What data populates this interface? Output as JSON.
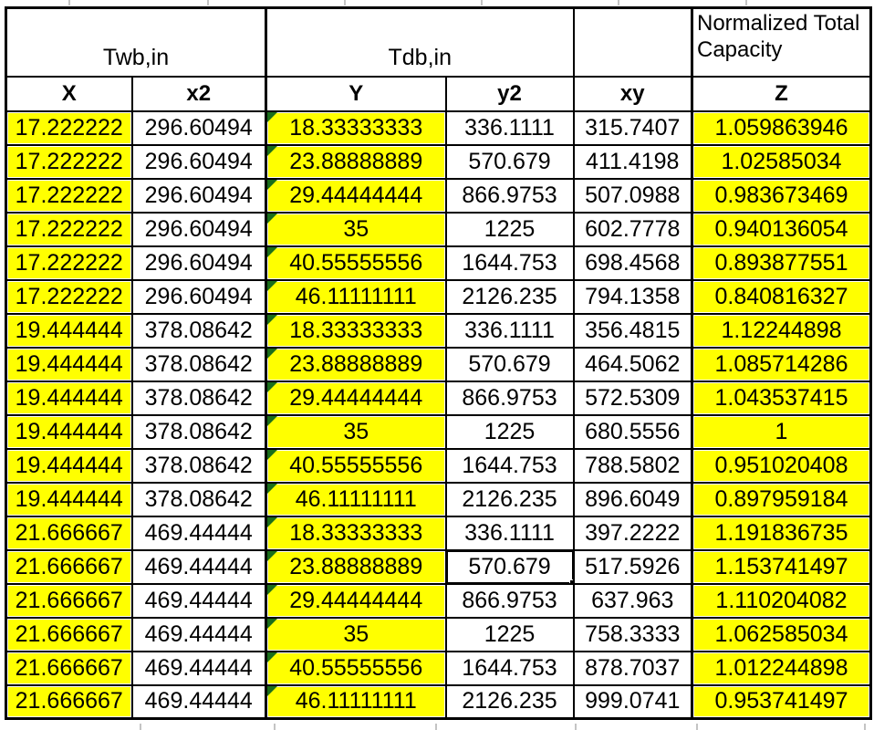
{
  "table": {
    "group_headers": [
      {
        "label": "Twb,in",
        "span": 2
      },
      {
        "label": "Tdb,in",
        "span": 2
      },
      {
        "label": "",
        "span": 1
      },
      {
        "label": "Normalized Total Capacity",
        "span": 1
      }
    ],
    "column_headers": [
      "X",
      "x2",
      "Y",
      "y2",
      "xy",
      "Z"
    ],
    "rows": [
      [
        "17.222222",
        "296.60494",
        "18.33333333",
        "336.1111",
        "315.7407",
        "1.059863946"
      ],
      [
        "17.222222",
        "296.60494",
        "23.88888889",
        "570.679",
        "411.4198",
        "1.02585034"
      ],
      [
        "17.222222",
        "296.60494",
        "29.44444444",
        "866.9753",
        "507.0988",
        "0.983673469"
      ],
      [
        "17.222222",
        "296.60494",
        "35",
        "1225",
        "602.7778",
        "0.940136054"
      ],
      [
        "17.222222",
        "296.60494",
        "40.55555556",
        "1644.753",
        "698.4568",
        "0.893877551"
      ],
      [
        "17.222222",
        "296.60494",
        "46.11111111",
        "2126.235",
        "794.1358",
        "0.840816327"
      ],
      [
        "19.444444",
        "378.08642",
        "18.33333333",
        "336.1111",
        "356.4815",
        "1.12244898"
      ],
      [
        "19.444444",
        "378.08642",
        "23.88888889",
        "570.679",
        "464.5062",
        "1.085714286"
      ],
      [
        "19.444444",
        "378.08642",
        "29.44444444",
        "866.9753",
        "572.5309",
        "1.043537415"
      ],
      [
        "19.444444",
        "378.08642",
        "35",
        "1225",
        "680.5556",
        "1"
      ],
      [
        "19.444444",
        "378.08642",
        "40.55555556",
        "1644.753",
        "788.5802",
        "0.951020408"
      ],
      [
        "19.444444",
        "378.08642",
        "46.11111111",
        "2126.235",
        "896.6049",
        "0.897959184"
      ],
      [
        "21.666667",
        "469.44444",
        "18.33333333",
        "336.1111",
        "397.2222",
        "1.191836735"
      ],
      [
        "21.666667",
        "469.44444",
        "23.88888889",
        "570.679",
        "517.5926",
        "1.153741497"
      ],
      [
        "21.666667",
        "469.44444",
        "29.44444444",
        "866.9753",
        "637.963",
        "1.110204082"
      ],
      [
        "21.666667",
        "469.44444",
        "35",
        "1225",
        "758.3333",
        "1.062585034"
      ],
      [
        "21.666667",
        "469.44444",
        "40.55555556",
        "1644.753",
        "878.7037",
        "1.012244898"
      ],
      [
        "21.666667",
        "469.44444",
        "46.11111111",
        "2126.235",
        "999.0741",
        "0.953741497"
      ]
    ],
    "highlighted_columns": [
      0,
      2,
      5
    ],
    "error_indicator_column": 2,
    "selection": {
      "row_index": 13,
      "col_index": 3,
      "value": "570.679"
    },
    "colors": {
      "highlight": "#FFFF00",
      "border": "#000000",
      "error_indicator": "#1B6E1B",
      "gridline": "#C4C4C4"
    }
  }
}
